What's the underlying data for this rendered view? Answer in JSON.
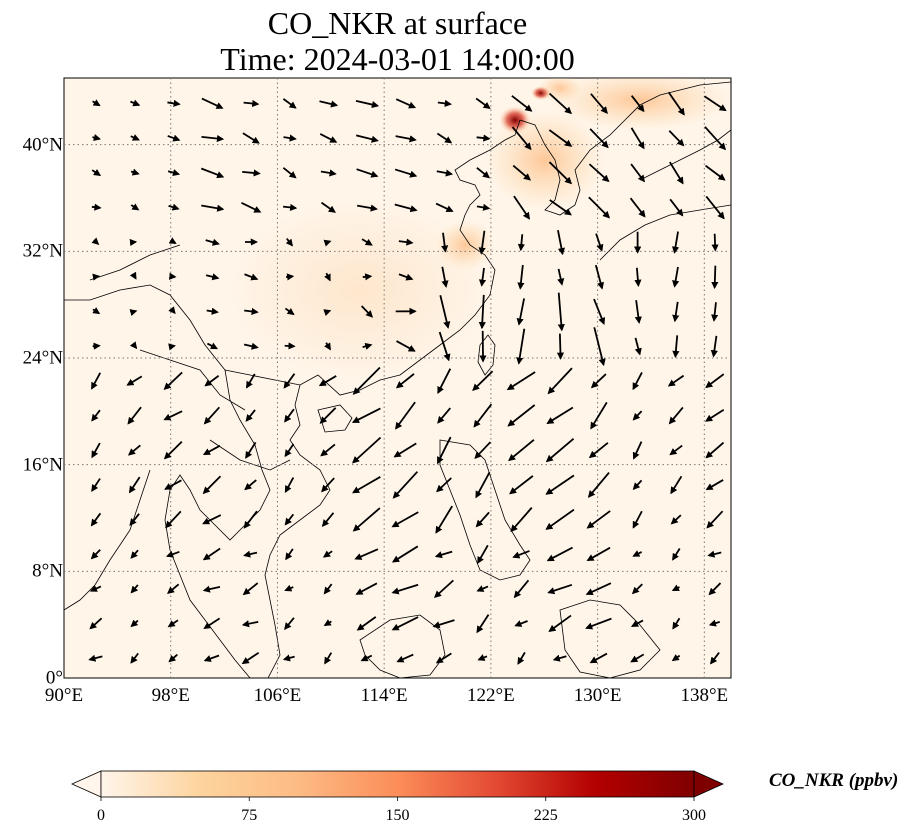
{
  "title_line1": "CO_NKR at surface",
  "title_line2": "Time: 2024-03-01 14:00:00",
  "map": {
    "lon_range": [
      90,
      140
    ],
    "lat_range": [
      0,
      45
    ],
    "x_ticks": [
      "90°E",
      "98°E",
      "106°E",
      "114°E",
      "122°E",
      "130°E",
      "138°E"
    ],
    "x_tick_values": [
      90,
      98,
      106,
      114,
      122,
      130,
      138
    ],
    "y_ticks": [
      "0°",
      "8°N",
      "16°N",
      "24°N",
      "32°N",
      "40°N"
    ],
    "y_tick_values": [
      0,
      8,
      16,
      24,
      32,
      40
    ],
    "gridlines": "dotted",
    "field": "CO_NKR",
    "overlay": "surface wind vectors",
    "background_color": "#fff5e9"
  },
  "colorbar": {
    "label": "CO_NKR (ppbv)",
    "ticks": [
      "0",
      "75",
      "150",
      "225",
      "300"
    ],
    "tick_values": [
      0,
      75,
      150,
      225,
      300
    ],
    "range": [
      0,
      300
    ],
    "extend": "both",
    "colormap": "OrRd",
    "colors": [
      "#fff5eb",
      "#fdd49e",
      "#fdbb84",
      "#fc8d59",
      "#e34a33",
      "#b30000",
      "#7f0000"
    ]
  }
}
